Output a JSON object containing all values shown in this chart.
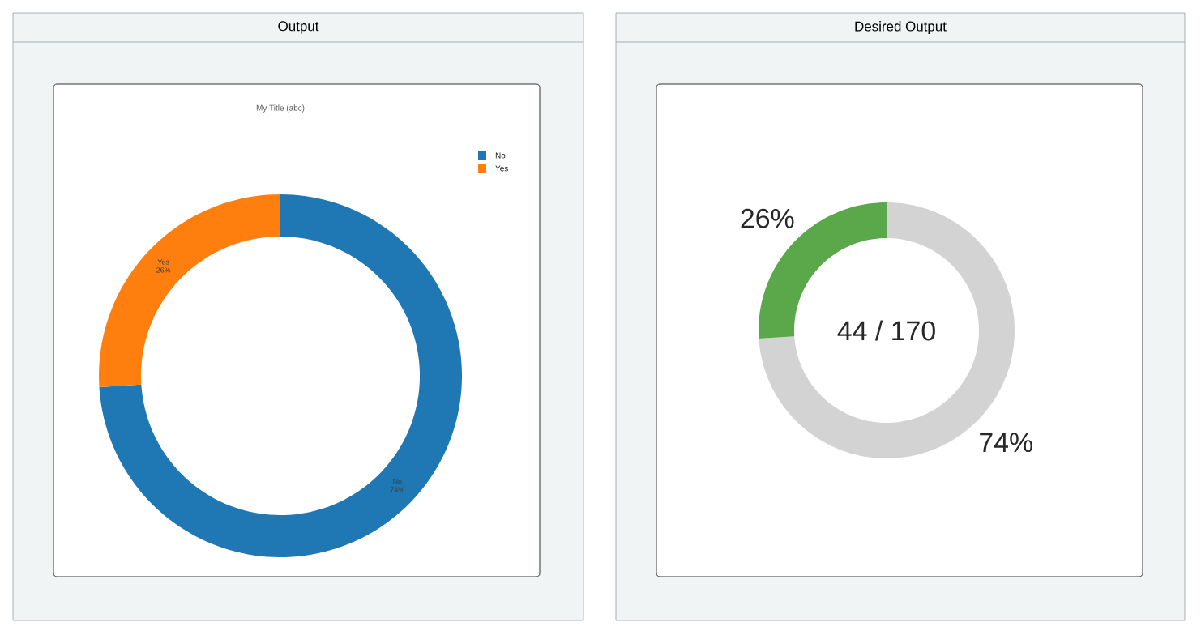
{
  "chart_data": [
    {
      "type": "donut",
      "title": "Output",
      "subtitle": "My Title (abc)",
      "categories": [
        "No",
        "Yes"
      ],
      "values": [
        74,
        26
      ],
      "colors": [
        "#1f77b4",
        "#ff7f0e"
      ],
      "value_labels": [
        "74%",
        "26%"
      ],
      "legend": "top right"
    },
    {
      "type": "donut",
      "title": "Desired Output",
      "categories": [
        null,
        null
      ],
      "values": [
        74,
        26
      ],
      "colors": [
        "#d3d3d3",
        "#5ba84a"
      ],
      "value_labels": [
        "74%",
        "26%"
      ],
      "annotations": [
        "44 / 170"
      ]
    }
  ]
}
